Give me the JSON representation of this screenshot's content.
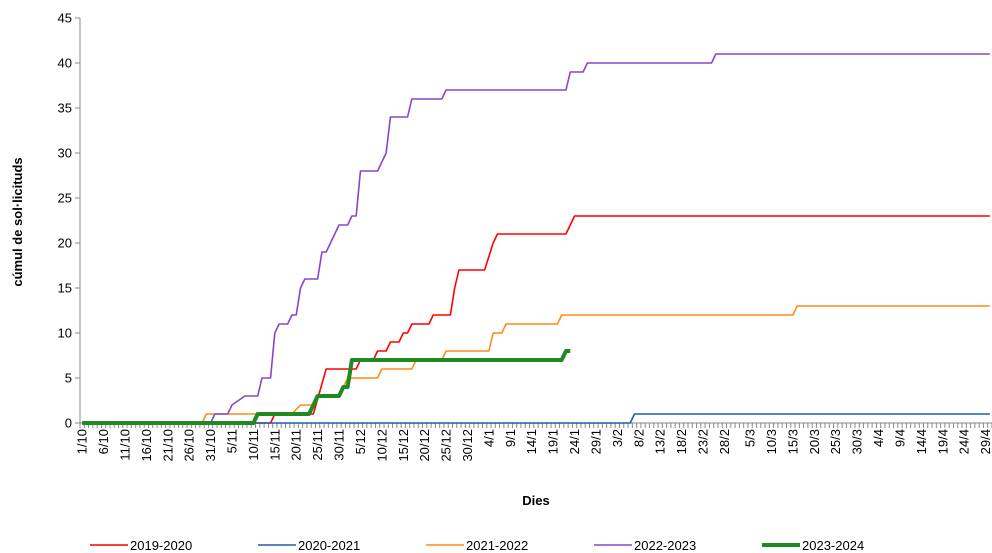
{
  "chart_data": {
    "type": "line",
    "title": "",
    "xlabel": "Dies",
    "ylabel": "cúmul de sol·licituds",
    "ylim": [
      0,
      45
    ],
    "yticks": [
      "0",
      "5",
      "10",
      "15",
      "20",
      "25",
      "30",
      "35",
      "40",
      "45"
    ],
    "x_start": "1/10",
    "x_end": "30/4",
    "xtick_labels": [
      "1/10",
      "6/10",
      "11/10",
      "16/10",
      "21/10",
      "26/10",
      "31/10",
      "5/11",
      "10/11",
      "15/11",
      "20/11",
      "25/11",
      "30/11",
      "5/12",
      "10/12",
      "15/12",
      "20/12",
      "25/12",
      "30/12",
      "4/1",
      "9/1",
      "14/1",
      "19/1",
      "24/1",
      "29/1",
      "3/2",
      "8/2",
      "13/2",
      "18/2",
      "23/2",
      "28/2",
      "5/3",
      "10/3",
      "15/3",
      "20/3",
      "25/3",
      "30/3",
      "4/4",
      "9/4",
      "14/4",
      "19/4",
      "24/4",
      "29/4"
    ],
    "grid": false,
    "legend_position": "bottom",
    "series": [
      {
        "name": "2019-2020",
        "color": "#ff0000",
        "points": [
          [
            "1/10",
            0
          ],
          [
            "14/11",
            0
          ],
          [
            "15/11",
            1
          ],
          [
            "24/11",
            1
          ],
          [
            "27/11",
            6
          ],
          [
            "4/12",
            6
          ],
          [
            "5/12",
            7
          ],
          [
            "8/12",
            7
          ],
          [
            "9/12",
            8
          ],
          [
            "11/12",
            8
          ],
          [
            "12/12",
            9
          ],
          [
            "14/12",
            9
          ],
          [
            "15/12",
            10
          ],
          [
            "16/12",
            10
          ],
          [
            "17/12",
            11
          ],
          [
            "21/12",
            11
          ],
          [
            "22/12",
            12
          ],
          [
            "26/12",
            12
          ],
          [
            "27/12",
            15
          ],
          [
            "28/12",
            17
          ],
          [
            "3/1",
            17
          ],
          [
            "5/1",
            20
          ],
          [
            "6/1",
            21
          ],
          [
            "22/1",
            21
          ],
          [
            "24/1",
            23
          ],
          [
            "30/4",
            23
          ]
        ]
      },
      {
        "name": "2020-2021",
        "color": "#1f5fa8",
        "points": [
          [
            "1/10",
            0
          ],
          [
            "6/2",
            0
          ],
          [
            "7/2",
            1
          ],
          [
            "30/4",
            1
          ]
        ]
      },
      {
        "name": "2021-2022",
        "color": "#ff8c1a",
        "points": [
          [
            "1/10",
            0
          ],
          [
            "29/10",
            0
          ],
          [
            "30/10",
            1
          ],
          [
            "19/11",
            1
          ],
          [
            "21/11",
            2
          ],
          [
            "24/11",
            2
          ],
          [
            "25/11",
            3
          ],
          [
            "30/11",
            3
          ],
          [
            "2/12",
            5
          ],
          [
            "9/12",
            5
          ],
          [
            "10/12",
            6
          ],
          [
            "17/12",
            6
          ],
          [
            "18/12",
            7
          ],
          [
            "24/12",
            7
          ],
          [
            "25/12",
            8
          ],
          [
            "4/1",
            8
          ],
          [
            "5/1",
            10
          ],
          [
            "7/1",
            10
          ],
          [
            "8/1",
            11
          ],
          [
            "20/1",
            11
          ],
          [
            "21/1",
            12
          ],
          [
            "15/3",
            12
          ],
          [
            "16/3",
            13
          ],
          [
            "30/4",
            13
          ]
        ]
      },
      {
        "name": "2022-2023",
        "color": "#8a46c8",
        "points": [
          [
            "1/10",
            0
          ],
          [
            "31/10",
            0
          ],
          [
            "1/11",
            1
          ],
          [
            "4/11",
            1
          ],
          [
            "5/11",
            2
          ],
          [
            "8/11",
            3
          ],
          [
            "11/11",
            3
          ],
          [
            "12/11",
            5
          ],
          [
            "14/11",
            5
          ],
          [
            "15/11",
            10
          ],
          [
            "16/11",
            11
          ],
          [
            "18/11",
            11
          ],
          [
            "19/11",
            12
          ],
          [
            "20/11",
            12
          ],
          [
            "21/11",
            15
          ],
          [
            "22/11",
            16
          ],
          [
            "25/11",
            16
          ],
          [
            "26/11",
            19
          ],
          [
            "27/11",
            19
          ],
          [
            "30/11",
            22
          ],
          [
            "2/12",
            22
          ],
          [
            "3/12",
            23
          ],
          [
            "4/12",
            23
          ],
          [
            "5/12",
            28
          ],
          [
            "9/12",
            28
          ],
          [
            "10/12",
            29
          ],
          [
            "11/12",
            30
          ],
          [
            "12/12",
            34
          ],
          [
            "16/12",
            34
          ],
          [
            "17/12",
            36
          ],
          [
            "24/12",
            36
          ],
          [
            "25/12",
            37
          ],
          [
            "22/1",
            37
          ],
          [
            "23/1",
            39
          ],
          [
            "26/1",
            39
          ],
          [
            "27/1",
            40
          ],
          [
            "25/2",
            40
          ],
          [
            "26/2",
            41
          ],
          [
            "30/4",
            41
          ]
        ]
      },
      {
        "name": "2023-2024",
        "color": "#1f8a1f",
        "points": [
          [
            "1/10",
            0
          ],
          [
            "10/11",
            0
          ],
          [
            "11/11",
            1
          ],
          [
            "23/11",
            1
          ],
          [
            "24/11",
            2
          ],
          [
            "25/11",
            3
          ],
          [
            "30/11",
            3
          ],
          [
            "1/12",
            4
          ],
          [
            "2/12",
            4
          ],
          [
            "3/12",
            7
          ],
          [
            "21/1",
            7
          ],
          [
            "22/1",
            8
          ],
          [
            "23/1",
            8
          ]
        ]
      }
    ]
  }
}
